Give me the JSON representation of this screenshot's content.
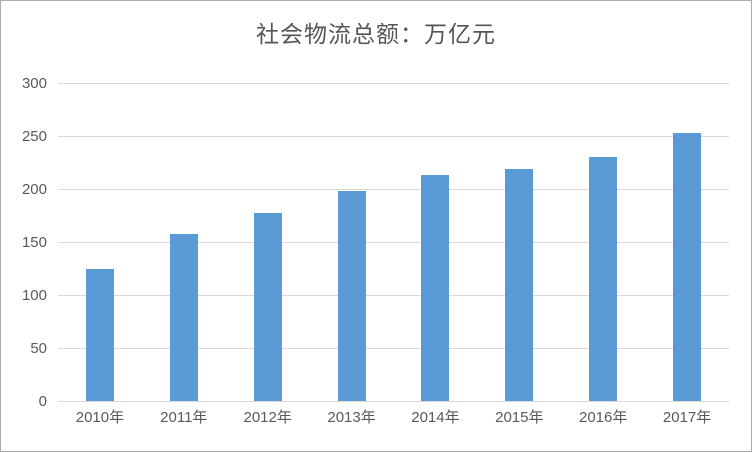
{
  "chart_data": {
    "type": "bar",
    "title": "社会物流总额：万亿元",
    "categories": [
      "2010年",
      "2011年",
      "2012年",
      "2013年",
      "2014年",
      "2015年",
      "2016年",
      "2017年"
    ],
    "values": [
      125,
      158,
      177,
      198,
      213,
      219,
      230,
      253
    ],
    "series_name": "社会物流总额",
    "xlabel": "",
    "ylabel": "",
    "ylim": [
      0,
      300
    ],
    "y_ticks": [
      0,
      50,
      100,
      150,
      200,
      250,
      300
    ],
    "grid": "horizontal",
    "legend": "none",
    "colors": {
      "bar": "#5b9bd5",
      "gridline": "#d9d9d9",
      "tick_text": "#595959",
      "title_text": "#555555",
      "frame_border": "#ababab",
      "background": "#ffffff"
    }
  }
}
